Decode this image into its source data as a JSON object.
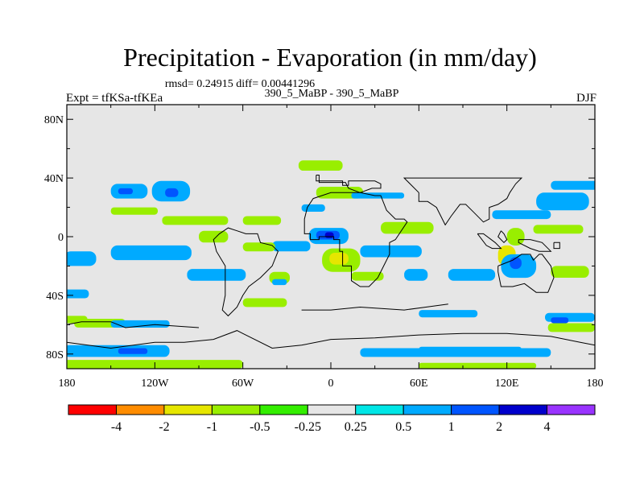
{
  "chart_data": {
    "type": "heatmap",
    "title": "Precipitation - Evaporation (in mm/day)",
    "stats_text": "rmsd= 0.24915 diff= 0.00441296",
    "center_label": "390_5_MaBP - 390_5_MaBP",
    "left_label": "Expt = tfKSa-tfKEa",
    "right_label": "DJF",
    "xlim": [
      -180,
      180
    ],
    "ylim": [
      -90,
      90
    ],
    "x_ticks": [
      {
        "value": -180,
        "label": "180"
      },
      {
        "value": -120,
        "label": "120W"
      },
      {
        "value": -60,
        "label": "60W"
      },
      {
        "value": 0,
        "label": "0"
      },
      {
        "value": 60,
        "label": "60E"
      },
      {
        "value": 120,
        "label": "120E"
      },
      {
        "value": 180,
        "label": "180"
      }
    ],
    "y_ticks": [
      {
        "value": 80,
        "label": "80N"
      },
      {
        "value": 40,
        "label": "40N"
      },
      {
        "value": 0,
        "label": "0"
      },
      {
        "value": -40,
        "label": "40S"
      },
      {
        "value": -80,
        "label": "80S"
      }
    ],
    "colorbar": {
      "levels": [
        "-4",
        "-2",
        "-1",
        "-0.5",
        "-0.25",
        "0.25",
        "0.5",
        "1",
        "2",
        "4"
      ],
      "colors": [
        "#ff0000",
        "#ff8c00",
        "#e6e600",
        "#99ee00",
        "#33ee00",
        "#e6e6e6",
        "#00e6e6",
        "#00aaff",
        "#0055ff",
        "#0000cc",
        "#9933ff"
      ]
    },
    "background_color": "#e6e6e6",
    "regions": [
      {
        "level": "0.5",
        "lon": [
          -150,
          -125
        ],
        "lat": [
          26,
          36
        ]
      },
      {
        "level": "1",
        "lon": [
          -145,
          -135
        ],
        "lat": [
          29,
          33
        ]
      },
      {
        "level": "0.5",
        "lon": [
          -122,
          -96
        ],
        "lat": [
          24,
          38
        ]
      },
      {
        "level": "1",
        "lon": [
          -113,
          -104
        ],
        "lat": [
          27,
          33
        ]
      },
      {
        "level": "-0.5",
        "lon": [
          -150,
          -118
        ],
        "lat": [
          15,
          20
        ]
      },
      {
        "level": "-0.5",
        "lon": [
          -115,
          -70
        ],
        "lat": [
          8,
          14
        ]
      },
      {
        "level": "-0.5",
        "lon": [
          -60,
          -34
        ],
        "lat": [
          8,
          14
        ]
      },
      {
        "level": "-0.5",
        "lon": [
          -22,
          8
        ],
        "lat": [
          45,
          52
        ]
      },
      {
        "level": "-0.5",
        "lon": [
          -10,
          22
        ],
        "lat": [
          26,
          34
        ]
      },
      {
        "level": "0.5",
        "lon": [
          14,
          50
        ],
        "lat": [
          26,
          30
        ]
      },
      {
        "level": "0.5",
        "lon": [
          -20,
          -4
        ],
        "lat": [
          17,
          22
        ]
      },
      {
        "level": "-0.5",
        "lon": [
          34,
          70
        ],
        "lat": [
          2,
          10
        ]
      },
      {
        "level": "0.5",
        "lon": [
          -40,
          -14
        ],
        "lat": [
          -10,
          -3
        ]
      },
      {
        "level": "0.5",
        "lon": [
          -15,
          12
        ],
        "lat": [
          -5,
          6
        ]
      },
      {
        "level": "1",
        "lon": [
          -10,
          6
        ],
        "lat": [
          -2,
          4
        ]
      },
      {
        "level": "2",
        "lon": [
          -4,
          2
        ],
        "lat": [
          -1,
          3
        ]
      },
      {
        "level": "-0.5",
        "lon": [
          -6,
          20
        ],
        "lat": [
          -24,
          -8
        ]
      },
      {
        "level": "-1",
        "lon": [
          -1,
          12
        ],
        "lat": [
          -19,
          -11
        ]
      },
      {
        "level": "0.5",
        "lon": [
          20,
          62
        ],
        "lat": [
          -14,
          -6
        ]
      },
      {
        "level": "-0.5",
        "lon": [
          -60,
          -38
        ],
        "lat": [
          -10,
          -4
        ]
      },
      {
        "level": "0.5",
        "lon": [
          -182,
          -160
        ],
        "lat": [
          -20,
          -10
        ]
      },
      {
        "level": "0.5",
        "lon": [
          -150,
          -95
        ],
        "lat": [
          -16,
          -6
        ]
      },
      {
        "level": "-0.5",
        "lon": [
          -90,
          -70
        ],
        "lat": [
          -4,
          4
        ]
      },
      {
        "level": "0.5",
        "lon": [
          -98,
          -58
        ],
        "lat": [
          -30,
          -22
        ]
      },
      {
        "level": "-0.5",
        "lon": [
          -42,
          -28
        ],
        "lat": [
          -32,
          -24
        ]
      },
      {
        "level": "0.5",
        "lon": [
          -40,
          -30
        ],
        "lat": [
          -33,
          -29
        ]
      },
      {
        "level": "-0.5",
        "lon": [
          14,
          36
        ],
        "lat": [
          -30,
          -24
        ]
      },
      {
        "level": "0.5",
        "lon": [
          50,
          66
        ],
        "lat": [
          -30,
          -22
        ]
      },
      {
        "level": "-0.5",
        "lon": [
          120,
          132
        ],
        "lat": [
          -6,
          6
        ]
      },
      {
        "level": "-1",
        "lon": [
          114,
          126
        ],
        "lat": [
          -20,
          -6
        ]
      },
      {
        "level": "0.5",
        "lon": [
          116,
          140
        ],
        "lat": [
          -28,
          -12
        ]
      },
      {
        "level": "1",
        "lon": [
          122,
          130
        ],
        "lat": [
          -22,
          -14
        ]
      },
      {
        "level": "-0.5",
        "lon": [
          150,
          176
        ],
        "lat": [
          -28,
          -20
        ]
      },
      {
        "level": "0.5",
        "lon": [
          80,
          112
        ],
        "lat": [
          -30,
          -22
        ]
      },
      {
        "level": "0.5",
        "lon": [
          110,
          150
        ],
        "lat": [
          12,
          18
        ]
      },
      {
        "level": "0.5",
        "lon": [
          140,
          176
        ],
        "lat": [
          18,
          30
        ]
      },
      {
        "level": "0.5",
        "lon": [
          150,
          182
        ],
        "lat": [
          32,
          38
        ]
      },
      {
        "level": "-0.5",
        "lon": [
          138,
          172
        ],
        "lat": [
          2,
          8
        ]
      },
      {
        "level": "0.5",
        "lon": [
          -182,
          -165
        ],
        "lat": [
          -42,
          -36
        ]
      },
      {
        "level": "-0.5",
        "lon": [
          -182,
          -166
        ],
        "lat": [
          -59,
          -54
        ]
      },
      {
        "level": "-0.5",
        "lon": [
          -175,
          -140
        ],
        "lat": [
          -62,
          -56
        ]
      },
      {
        "level": "0.5",
        "lon": [
          -150,
          -110
        ],
        "lat": [
          -62,
          -57
        ]
      },
      {
        "level": "-0.5",
        "lon": [
          -60,
          -30
        ],
        "lat": [
          -48,
          -42
        ]
      },
      {
        "level": "0.5",
        "lon": [
          60,
          100
        ],
        "lat": [
          -55,
          -50
        ]
      },
      {
        "level": "0.5",
        "lon": [
          146,
          180
        ],
        "lat": [
          -58,
          -52
        ]
      },
      {
        "level": "1",
        "lon": [
          150,
          162
        ],
        "lat": [
          -59,
          -55
        ]
      },
      {
        "level": "-0.5",
        "lon": [
          148,
          180
        ],
        "lat": [
          -65,
          -59
        ]
      },
      {
        "level": "0.5",
        "lon": [
          -182,
          -110
        ],
        "lat": [
          -82,
          -74
        ]
      },
      {
        "level": "1",
        "lon": [
          -145,
          -125
        ],
        "lat": [
          -80,
          -76
        ]
      },
      {
        "level": "0.5",
        "lon": [
          20,
          150
        ],
        "lat": [
          -82,
          -76
        ]
      },
      {
        "level": "0.5",
        "lon": [
          60,
          130
        ],
        "lat": [
          -79,
          -75
        ]
      },
      {
        "level": "-0.5",
        "lon": [
          -182,
          -60
        ],
        "lat": [
          -90,
          -84
        ]
      },
      {
        "level": "-0.5",
        "lon": [
          60,
          140
        ],
        "lat": [
          -90,
          -86
        ]
      }
    ],
    "coastlines": [
      [
        [
          -10,
          42
        ],
        [
          -10,
          38
        ],
        [
          8,
          38
        ],
        [
          8,
          35
        ],
        [
          12,
          35
        ],
        [
          12,
          38
        ],
        [
          30,
          38
        ],
        [
          34,
          36
        ],
        [
          34,
          33
        ],
        [
          28,
          33
        ],
        [
          20,
          30
        ],
        [
          12,
          33
        ],
        [
          10,
          37
        ],
        [
          -8,
          37
        ],
        [
          -8,
          42
        ],
        [
          -10,
          42
        ]
      ],
      [
        [
          -18,
          6
        ],
        [
          -18,
          2
        ],
        [
          -14,
          2
        ],
        [
          -14,
          -2
        ],
        [
          -8,
          -2
        ],
        [
          -8,
          0
        ],
        [
          2,
          0
        ],
        [
          2,
          -2
        ],
        [
          6,
          -2
        ],
        [
          6,
          -10
        ],
        [
          8,
          -10
        ],
        [
          8,
          -20
        ],
        [
          14,
          -20
        ],
        [
          14,
          -30
        ],
        [
          20,
          -34
        ],
        [
          26,
          -34
        ],
        [
          32,
          -28
        ],
        [
          36,
          -20
        ],
        [
          40,
          -12
        ],
        [
          40,
          -4
        ],
        [
          44,
          -2
        ],
        [
          52,
          10
        ],
        [
          50,
          12
        ],
        [
          44,
          12
        ],
        [
          38,
          18
        ],
        [
          34,
          28
        ],
        [
          30,
          28
        ],
        [
          20,
          30
        ],
        [
          10,
          30
        ],
        [
          0,
          30
        ],
        [
          -12,
          26
        ],
        [
          -16,
          20
        ],
        [
          -18,
          12
        ],
        [
          -18,
          6
        ]
      ],
      [
        [
          -64,
          4
        ],
        [
          -58,
          2
        ],
        [
          -50,
          2
        ],
        [
          -48,
          -4
        ],
        [
          -40,
          -6
        ],
        [
          -36,
          -10
        ],
        [
          -40,
          -20
        ],
        [
          -48,
          -28
        ],
        [
          -56,
          -34
        ],
        [
          -60,
          -40
        ],
        [
          -64,
          -48
        ],
        [
          -70,
          -54
        ],
        [
          -74,
          -50
        ],
        [
          -72,
          -40
        ],
        [
          -72,
          -30
        ],
        [
          -72,
          -20
        ],
        [
          -78,
          -10
        ],
        [
          -80,
          -2
        ],
        [
          -76,
          2
        ],
        [
          -70,
          6
        ],
        [
          -64,
          4
        ]
      ],
      [
        [
          114,
          -20
        ],
        [
          114,
          -24
        ],
        [
          116,
          -34
        ],
        [
          124,
          -34
        ],
        [
          132,
          -32
        ],
        [
          140,
          -38
        ],
        [
          148,
          -38
        ],
        [
          152,
          -28
        ],
        [
          150,
          -20
        ],
        [
          144,
          -12
        ],
        [
          142,
          -12
        ],
        [
          138,
          -16
        ],
        [
          136,
          -12
        ],
        [
          130,
          -12
        ],
        [
          124,
          -16
        ],
        [
          114,
          -20
        ]
      ],
      [
        [
          152,
          -4
        ],
        [
          156,
          -4
        ],
        [
          156,
          -8
        ],
        [
          152,
          -8
        ],
        [
          152,
          -4
        ]
      ],
      [
        [
          60,
          30
        ],
        [
          60,
          24
        ],
        [
          66,
          24
        ],
        [
          72,
          20
        ],
        [
          78,
          8
        ],
        [
          82,
          14
        ],
        [
          88,
          22
        ],
        [
          92,
          22
        ],
        [
          98,
          16
        ],
        [
          104,
          10
        ],
        [
          108,
          12
        ],
        [
          108,
          20
        ],
        [
          114,
          22
        ],
        [
          120,
          26
        ],
        [
          122,
          30
        ],
        [
          126,
          36
        ],
        [
          130,
          40
        ],
        [
          120,
          40
        ],
        [
          100,
          40
        ],
        [
          80,
          40
        ],
        [
          60,
          40
        ],
        [
          50,
          40
        ],
        [
          60,
          30
        ]
      ],
      [
        [
          100,
          2
        ],
        [
          106,
          -6
        ],
        [
          110,
          -8
        ],
        [
          116,
          -8
        ],
        [
          112,
          -4
        ],
        [
          104,
          2
        ],
        [
          100,
          2
        ]
      ],
      [
        [
          116,
          4
        ],
        [
          118,
          2
        ],
        [
          120,
          -2
        ],
        [
          118,
          -4
        ],
        [
          114,
          0
        ],
        [
          116,
          4
        ]
      ],
      [
        [
          128,
          -2
        ],
        [
          136,
          -2
        ],
        [
          144,
          -4
        ],
        [
          150,
          -10
        ],
        [
          142,
          -10
        ],
        [
          136,
          -8
        ],
        [
          128,
          -4
        ],
        [
          128,
          -2
        ]
      ],
      [
        [
          -180,
          -72
        ],
        [
          -150,
          -76
        ],
        [
          -120,
          -72
        ],
        [
          -100,
          -72
        ],
        [
          -80,
          -70
        ],
        [
          -64,
          -64
        ],
        [
          -60,
          -66
        ],
        [
          -40,
          -76
        ],
        [
          -20,
          -74
        ],
        [
          0,
          -70
        ],
        [
          30,
          -69
        ],
        [
          60,
          -67
        ],
        [
          90,
          -66
        ],
        [
          120,
          -66
        ],
        [
          150,
          -68
        ],
        [
          170,
          -72
        ],
        [
          180,
          -74
        ]
      ],
      [
        [
          -180,
          -60
        ],
        [
          -170,
          -58
        ],
        [
          -150,
          -58
        ],
        [
          -140,
          -62
        ],
        [
          -120,
          -60
        ],
        [
          -90,
          -62
        ]
      ],
      [
        [
          -20,
          -50
        ],
        [
          0,
          -50
        ],
        [
          20,
          -48
        ],
        [
          50,
          -50
        ],
        [
          80,
          -46
        ]
      ]
    ]
  }
}
